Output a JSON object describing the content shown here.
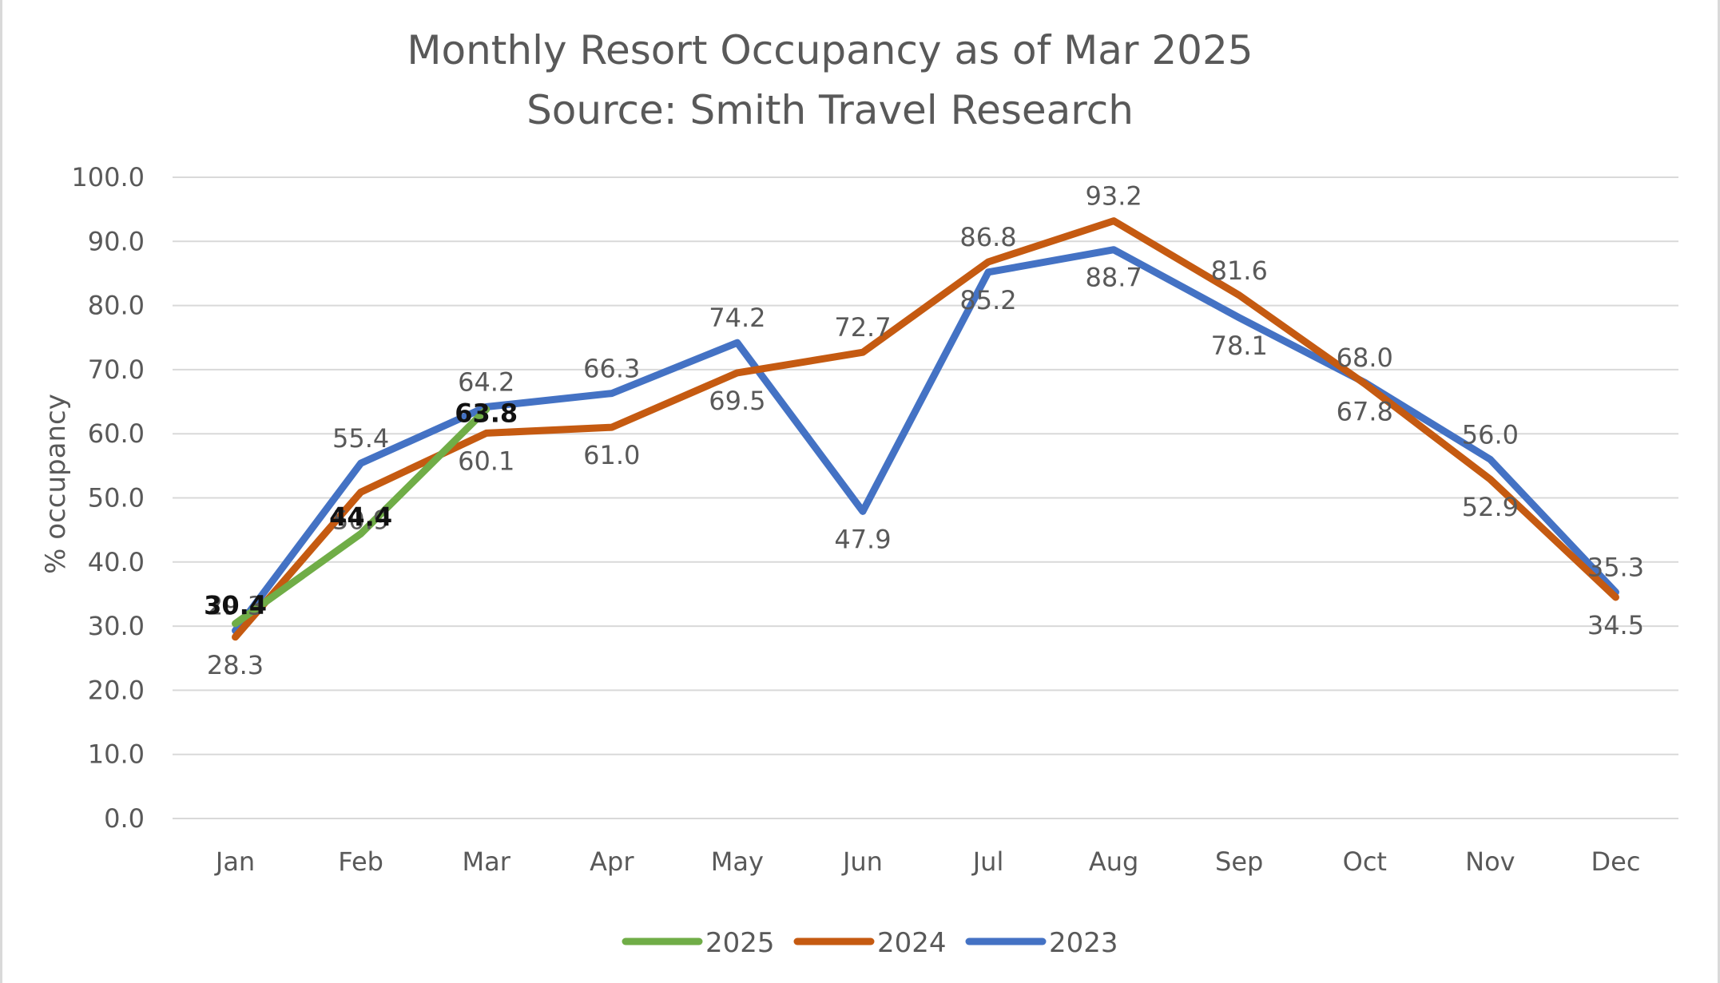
{
  "chart_data": {
    "type": "line",
    "title": "Monthly Resort Occupancy as of Mar 2025",
    "subtitle": "Source: Smith Travel Research",
    "xlabel": "",
    "ylabel": "% occupancy",
    "categories": [
      "Jan",
      "Feb",
      "Mar",
      "Apr",
      "May",
      "Jun",
      "Jul",
      "Aug",
      "Sep",
      "Oct",
      "Nov",
      "Dec"
    ],
    "ylim": [
      0,
      100
    ],
    "yticks": [
      "0.0",
      "10.0",
      "20.0",
      "30.0",
      "40.0",
      "50.0",
      "60.0",
      "70.0",
      "80.0",
      "90.0",
      "100.0"
    ],
    "grid": "horizontal",
    "legend_position": "bottom",
    "series": [
      {
        "name": "2025",
        "color": "#70ad47",
        "values": [
          30.4,
          44.4,
          63.8,
          null,
          null,
          null,
          null,
          null,
          null,
          null,
          null,
          null
        ],
        "labels": [
          "30.4",
          "44.4",
          "63.8"
        ],
        "label_style": "bold"
      },
      {
        "name": "2024",
        "color": "#c55a11",
        "values": [
          28.3,
          50.9,
          60.1,
          61.0,
          69.5,
          72.7,
          86.8,
          93.2,
          81.6,
          67.8,
          52.9,
          34.5
        ],
        "labels": [
          "28.3",
          "50.9",
          "60.1",
          "61.0",
          "69.5",
          "72.7",
          "86.8",
          "93.2",
          "81.6",
          "67.8",
          "52.9",
          "34.5"
        ]
      },
      {
        "name": "2023",
        "color": "#4472c4",
        "values": [
          29.3,
          55.4,
          64.2,
          66.3,
          74.2,
          47.9,
          85.2,
          88.7,
          78.1,
          68.0,
          56.0,
          35.3
        ],
        "labels": [
          "29.3",
          "55.4",
          "64.2",
          "66.3",
          "74.2",
          "47.9",
          "85.2",
          "88.7",
          "78.1",
          "68.0",
          "56.0",
          "35.3"
        ]
      }
    ]
  }
}
